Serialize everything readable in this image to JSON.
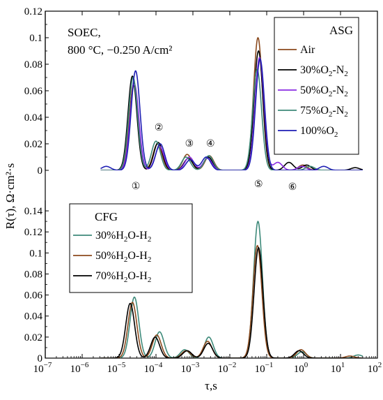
{
  "chart_data": {
    "type": "line",
    "shared_x_axis": {
      "label": "τ,s",
      "scale": "log",
      "range": [
        1e-07,
        100
      ],
      "tick_values": [
        1e-07,
        1e-06,
        1e-05,
        0.0001,
        0.001,
        0.01,
        0.1,
        1,
        10,
        100
      ],
      "tick_labels": [
        {
          "base": "10",
          "exp": "−7"
        },
        {
          "base": "10",
          "exp": "−6"
        },
        {
          "base": "10",
          "exp": "−5"
        },
        {
          "base": "10",
          "exp": "−4"
        },
        {
          "base": "10",
          "exp": "−3"
        },
        {
          "base": "10",
          "exp": "−2"
        },
        {
          "base": "10",
          "exp": "−1"
        },
        {
          "base": "10",
          "exp": "0"
        },
        {
          "base": "10",
          "exp": "1"
        },
        {
          "base": "10",
          "exp": "2"
        }
      ]
    },
    "shared_y_label": "R(τ), Ω·cm²·s",
    "peak_labels": [
      {
        "label": "①",
        "tau": 2.5e-05
      },
      {
        "label": "②",
        "tau": 0.00012
      },
      {
        "label": "③",
        "tau": 0.0008
      },
      {
        "label": "④",
        "tau": 0.003
      },
      {
        "label": "⑤",
        "tau": 0.06
      },
      {
        "label": "⑥",
        "tau": 0.5
      }
    ],
    "panels": [
      {
        "id": "top",
        "annotation_lines": [
          "SOEC,",
          "800 °C, −0.250 A/cm²"
        ],
        "ylim": [
          0,
          0.12
        ],
        "y_ticks": [
          0,
          0.02,
          0.04,
          0.06,
          0.08,
          0.1,
          0.12
        ],
        "y_tick_labels": [
          "0",
          "0.02",
          "0.04",
          "0.06",
          "0.08",
          "0.1",
          "0.12"
        ],
        "legend": {
          "title": "ASG",
          "position": "top-right",
          "entries": [
            {
              "text": "Air",
              "color": "#8B4A1E"
            },
            {
              "text": "30%O",
              "sub": "2",
              "tail": "-N",
              "sub2": "2",
              "color": "#000000"
            },
            {
              "text": "50%O",
              "sub": "2",
              "tail": "-N",
              "sub2": "2",
              "color": "#8A2BE2"
            },
            {
              "text": "75%O",
              "sub": "2",
              "tail": "-N",
              "sub2": "2",
              "color": "#3E8A7A"
            },
            {
              "text": "100%O",
              "sub": "2",
              "tail": "",
              "sub2": "",
              "color": "#1E1EB4"
            }
          ]
        },
        "series": [
          {
            "name": "Air",
            "color": "#8B4A1E",
            "peaks": [
              [
                2.5e-05,
                0.065
              ],
              [
                0.00011,
                0.02
              ],
              [
                0.0007,
                0.012
              ],
              [
                0.0028,
                0.011
              ],
              [
                0.058,
                0.1
              ],
              [
                0.95,
                0.004
              ]
            ]
          },
          {
            "name": "30%O2-N2",
            "color": "#000000",
            "peaks": [
              [
                2.3e-05,
                0.071
              ],
              [
                0.000115,
                0.021
              ],
              [
                0.00075,
                0.009
              ],
              [
                0.0026,
                0.01
              ],
              [
                0.06,
                0.09
              ],
              [
                0.4,
                0.006
              ],
              [
                1.2,
                0.004
              ],
              [
                25,
                0.002
              ]
            ]
          },
          {
            "name": "50%O2-N2",
            "color": "#8A2BE2",
            "peaks": [
              [
                2.6e-05,
                0.065
              ],
              [
                0.000125,
                0.018
              ],
              [
                0.0008,
                0.01
              ],
              [
                0.0025,
                0.009
              ],
              [
                0.064,
                0.085
              ],
              [
                0.2,
                0.006
              ],
              [
                0.9,
                0.003
              ]
            ]
          },
          {
            "name": "75%O2-N2",
            "color": "#3E8A7A",
            "peaks": [
              [
                2.4e-05,
                0.07
              ],
              [
                0.0001,
                0.022
              ],
              [
                0.00065,
                0.01
              ],
              [
                0.0027,
                0.011
              ],
              [
                0.055,
                0.076
              ],
              [
                1.5,
                0.003
              ]
            ]
          },
          {
            "name": "100%O2",
            "color": "#1E1EB4",
            "peaks": [
              [
                4.5e-06,
                0.003
              ],
              [
                2.8e-05,
                0.075
              ],
              [
                0.00013,
                0.02
              ],
              [
                0.00085,
                0.008
              ],
              [
                0.0023,
                0.01
              ],
              [
                0.066,
                0.084
              ],
              [
                3.5,
                0.003
              ]
            ]
          }
        ]
      },
      {
        "id": "bottom",
        "ylim": [
          0,
          0.15
        ],
        "y_ticks": [
          0,
          0.02,
          0.04,
          0.06,
          0.08,
          0.1,
          0.12,
          0.14
        ],
        "y_tick_labels": [
          "0",
          "0.02",
          "0.04",
          "0.06",
          "0.08",
          "0.1",
          "0.12",
          "0.14"
        ],
        "legend": {
          "title": "CFG",
          "position": "top-left",
          "entries": [
            {
              "text": "30%H",
              "sub": "2",
              "tail": "O-H",
              "sub2": "2",
              "color": "#3E8A7A"
            },
            {
              "text": "50%H",
              "sub": "2",
              "tail": "O-H",
              "sub2": "2",
              "color": "#8B4A1E"
            },
            {
              "text": "70%H",
              "sub": "2",
              "tail": "O-H",
              "sub2": "2",
              "color": "#000000"
            }
          ]
        },
        "series": [
          {
            "name": "30%H2O-H2",
            "color": "#3E8A7A",
            "peaks": [
              [
                2.6e-05,
                0.058
              ],
              [
                0.000125,
                0.025
              ],
              [
                0.0006,
                0.008
              ],
              [
                0.0027,
                0.02
              ],
              [
                0.058,
                0.13
              ],
              [
                0.9,
                0.006
              ],
              [
                30,
                0.003
              ]
            ]
          },
          {
            "name": "50%H2O-H2",
            "color": "#8B4A1E",
            "peaks": [
              [
                2.3e-05,
                0.053
              ],
              [
                0.000105,
                0.022
              ],
              [
                0.00065,
                0.007
              ],
              [
                0.0025,
                0.016
              ],
              [
                0.056,
                0.107
              ],
              [
                0.85,
                0.008
              ],
              [
                18,
                0.002
              ]
            ]
          },
          {
            "name": "70%H2O-H2",
            "color": "#000000",
            "peaks": [
              [
                2e-05,
                0.052
              ],
              [
                9.5e-05,
                0.02
              ],
              [
                0.0007,
                0.007
              ],
              [
                0.0026,
                0.014
              ],
              [
                0.06,
                0.105
              ],
              [
                0.75,
                0.007
              ]
            ]
          }
        ]
      }
    ]
  }
}
